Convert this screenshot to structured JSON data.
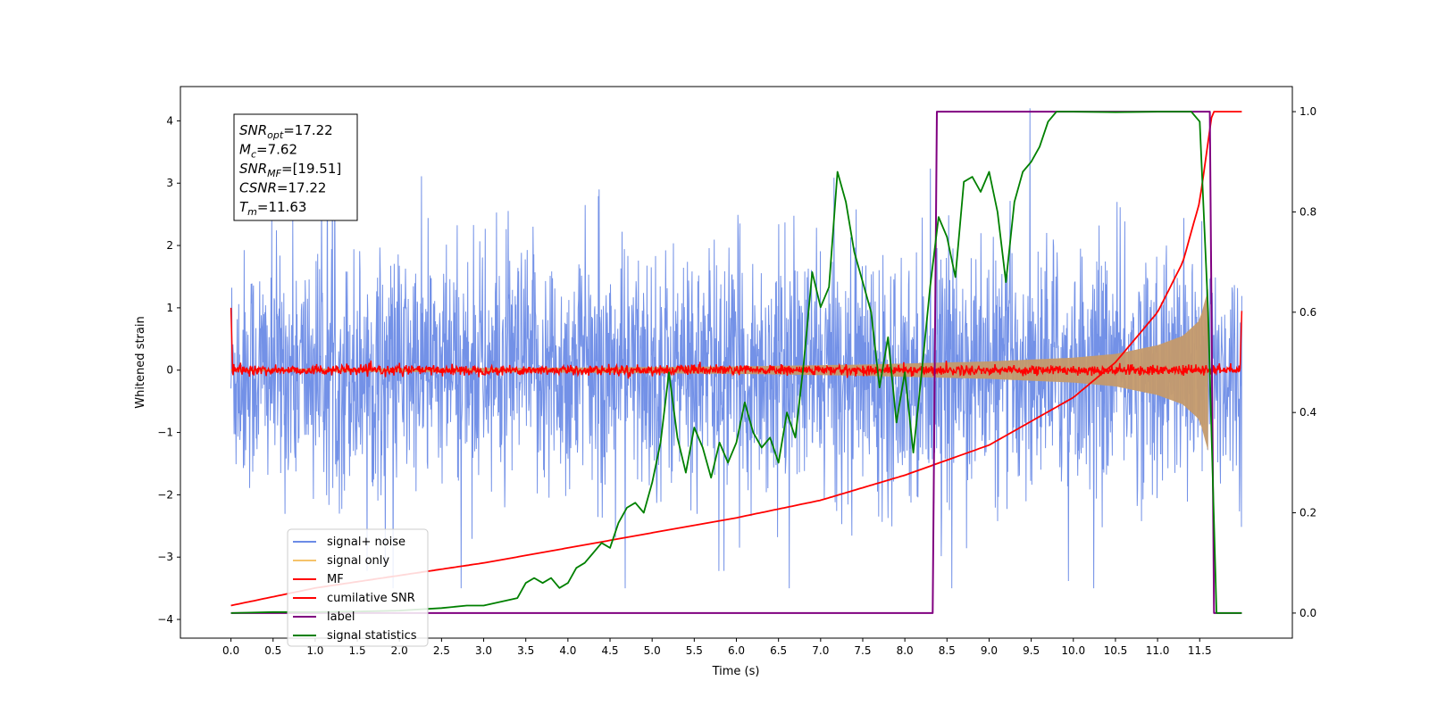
{
  "chart_data": {
    "type": "line",
    "xlabel": "Time (s)",
    "ylabel": "Whitened strain",
    "xlim": [
      -0.6,
      12.6
    ],
    "ylim": [
      -4.3,
      4.55
    ],
    "y2lim": [
      -0.05,
      1.05
    ],
    "x_ticks": [
      "0.0",
      "0.5",
      "1.0",
      "1.5",
      "2.0",
      "2.5",
      "3.0",
      "3.5",
      "4.0",
      "4.5",
      "5.0",
      "5.5",
      "6.0",
      "6.5",
      "7.0",
      "7.5",
      "8.0",
      "8.5",
      "9.0",
      "9.5",
      "10.0",
      "10.5",
      "11.0",
      "11.5"
    ],
    "y_ticks": [
      "4",
      "3",
      "2",
      "1",
      "0",
      "−1",
      "−2",
      "−3",
      "−4"
    ],
    "y2_ticks": [
      "1.0",
      "0.8",
      "0.6",
      "0.4",
      "0.2",
      "0.0"
    ],
    "legend_position": "lower-left",
    "annotation": [
      {
        "base": "SNR",
        "sub": "opt",
        "value": "=17.22"
      },
      {
        "base": "M",
        "sub": "c",
        "value": "=7.62"
      },
      {
        "base": "SNR",
        "sub": "MF",
        "value": "=[19.51]"
      },
      {
        "base": "CSNR",
        "sub": "",
        "value": "=17.22"
      },
      {
        "base": "T",
        "sub": "m",
        "value": "=11.63"
      }
    ],
    "series": [
      {
        "name": "signal+ noise",
        "color": "#6c8be6",
        "axis": "left",
        "description_range": [
          -3.5,
          4.2
        ],
        "t_range": [
          0.0,
          12.0
        ]
      },
      {
        "name": "signal only",
        "color": "#f5c36b",
        "axis": "left",
        "envelope": {
          "t": [
            0,
            2,
            4,
            6,
            7.5,
            9,
            10,
            10.5,
            11,
            11.3,
            11.5,
            11.6
          ],
          "amp": [
            0.02,
            0.03,
            0.04,
            0.06,
            0.09,
            0.14,
            0.2,
            0.26,
            0.4,
            0.55,
            0.8,
            1.3
          ]
        }
      },
      {
        "name": "MF",
        "color": "#ff0000",
        "axis": "left",
        "points": [
          [
            0.0,
            1.0
          ],
          [
            0.02,
            -0.05
          ],
          [
            11.98,
            0.0
          ],
          [
            12.0,
            0.95
          ]
        ],
        "noise_amp": 0.08
      },
      {
        "name": "cumilative SNR",
        "color": "#ff0000",
        "axis": "right",
        "x": [
          0.0,
          1.0,
          2.0,
          3.0,
          4.0,
          5.0,
          6.0,
          7.0,
          8.0,
          9.0,
          10.0,
          10.5,
          11.0,
          11.3,
          11.5,
          11.65,
          12.0
        ],
        "y": [
          0.015,
          0.05,
          0.075,
          0.1,
          0.13,
          0.16,
          0.19,
          0.225,
          0.275,
          0.335,
          0.43,
          0.5,
          0.6,
          0.7,
          0.82,
          1.0,
          1.0
        ]
      },
      {
        "name": "label",
        "color": "#800080",
        "axis": "right",
        "x": [
          0.0,
          8.33,
          8.38,
          11.62,
          11.67,
          12.0
        ],
        "y": [
          0.0,
          0.0,
          1.0,
          1.0,
          0.0,
          0.0
        ]
      },
      {
        "name": "signal statistics",
        "color": "#008000",
        "axis": "right",
        "x": [
          0.0,
          0.5,
          1.0,
          1.5,
          2.0,
          2.5,
          2.8,
          3.0,
          3.4,
          3.5,
          3.6,
          3.7,
          3.8,
          3.9,
          4.0,
          4.1,
          4.2,
          4.3,
          4.4,
          4.5,
          4.6,
          4.7,
          4.8,
          4.9,
          5.0,
          5.1,
          5.2,
          5.3,
          5.4,
          5.5,
          5.6,
          5.7,
          5.8,
          5.9,
          6.0,
          6.1,
          6.2,
          6.3,
          6.4,
          6.5,
          6.6,
          6.7,
          6.8,
          6.9,
          7.0,
          7.1,
          7.2,
          7.3,
          7.4,
          7.5,
          7.6,
          7.7,
          7.8,
          7.9,
          8.0,
          8.1,
          8.2,
          8.3,
          8.4,
          8.5,
          8.6,
          8.7,
          8.8,
          8.9,
          9.0,
          9.1,
          9.2,
          9.3,
          9.4,
          9.5,
          9.6,
          9.7,
          9.8,
          10.0,
          10.5,
          11.0,
          11.4,
          11.5,
          11.6,
          11.7,
          11.8,
          11.9,
          12.0
        ],
        "y": [
          0.0,
          0.002,
          0.002,
          0.003,
          0.005,
          0.01,
          0.015,
          0.015,
          0.03,
          0.06,
          0.07,
          0.06,
          0.07,
          0.05,
          0.06,
          0.09,
          0.1,
          0.12,
          0.14,
          0.13,
          0.18,
          0.21,
          0.22,
          0.2,
          0.26,
          0.34,
          0.48,
          0.35,
          0.28,
          0.37,
          0.33,
          0.27,
          0.34,
          0.3,
          0.34,
          0.42,
          0.36,
          0.33,
          0.35,
          0.3,
          0.4,
          0.35,
          0.5,
          0.68,
          0.61,
          0.65,
          0.88,
          0.82,
          0.72,
          0.66,
          0.6,
          0.45,
          0.55,
          0.38,
          0.48,
          0.32,
          0.48,
          0.65,
          0.79,
          0.75,
          0.67,
          0.86,
          0.87,
          0.84,
          0.88,
          0.8,
          0.66,
          0.82,
          0.88,
          0.9,
          0.93,
          0.98,
          1.0,
          1.0,
          0.999,
          1.0,
          1.0,
          0.98,
          0.6,
          0.0,
          0.0,
          0.0,
          0.0
        ]
      }
    ]
  }
}
